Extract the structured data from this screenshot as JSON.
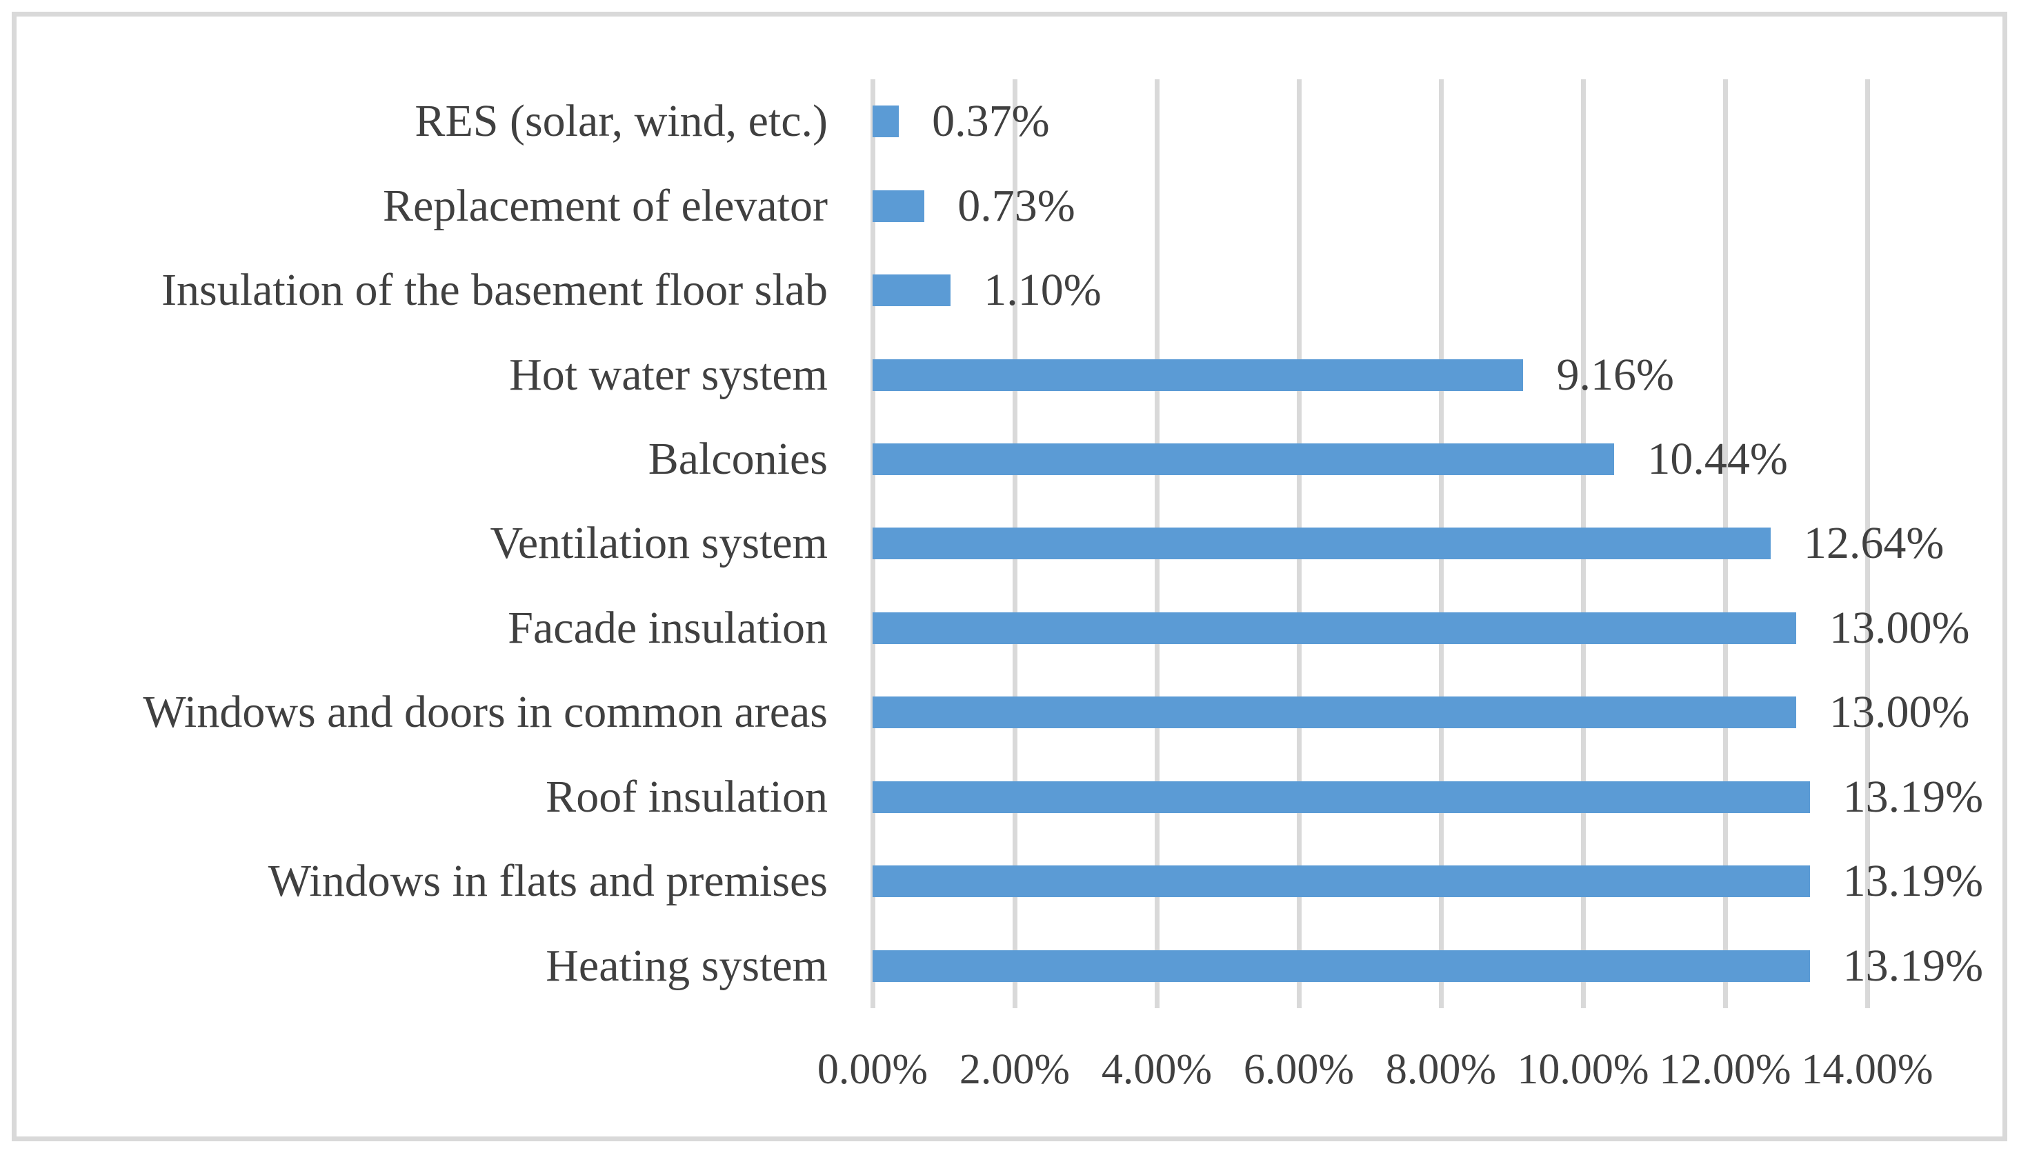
{
  "chart_data": {
    "type": "bar",
    "orientation": "horizontal",
    "title": "",
    "xlabel": "",
    "ylabel": "",
    "grid": true,
    "legend": false,
    "categories": [
      "RES (solar, wind, etc.)",
      "Replacement of elevator",
      "Insulation of the basement floor slab",
      "Hot water system",
      "Balconies",
      "Ventilation system",
      "Facade insulation",
      "Windows and doors in common areas",
      "Roof insulation",
      "Windows in flats and premises",
      "Heating system"
    ],
    "values": [
      0.37,
      0.73,
      1.1,
      9.16,
      10.44,
      12.64,
      13.0,
      13.0,
      13.19,
      13.19,
      13.19
    ],
    "data_labels": [
      "0.37%",
      "0.73%",
      "1.10%",
      "9.16%",
      "10.44%",
      "12.64%",
      "13.00%",
      "13.00%",
      "13.19%",
      "13.19%",
      "13.19%"
    ],
    "x_axis": {
      "min": 0,
      "max": 14,
      "step": 2,
      "ticks": [
        "0.00%",
        "2.00%",
        "4.00%",
        "6.00%",
        "8.00%",
        "10.00%",
        "12.00%",
        "14.00%"
      ]
    },
    "colors": {
      "bar": "#5b9bd5",
      "gridline": "#d9d9d9",
      "text": "#404040",
      "border": "#d9d9d9",
      "background": "#ffffff"
    }
  }
}
